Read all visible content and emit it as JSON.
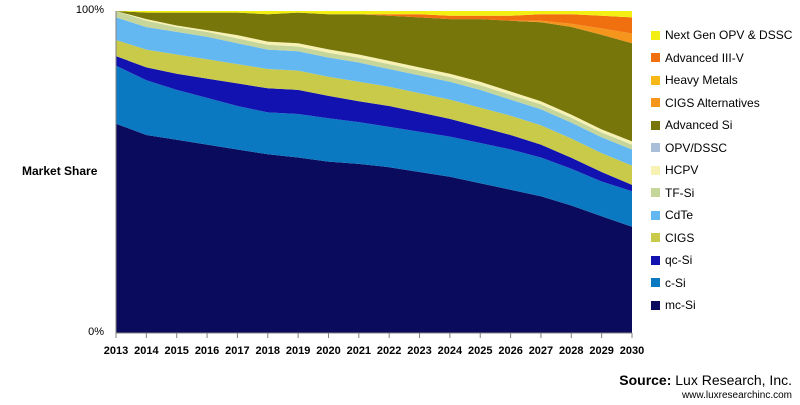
{
  "chart_data": {
    "type": "area",
    "stacked": "percent",
    "ylabel": "Market Share",
    "yticks": [
      "100%",
      "0%"
    ],
    "x": [
      "2013",
      "2014",
      "2015",
      "2016",
      "2017",
      "2018",
      "2019",
      "2020",
      "2021",
      "2022",
      "2023",
      "2024",
      "2025",
      "2026",
      "2027",
      "2028",
      "2029",
      "2030"
    ],
    "series": [
      {
        "name": "mc-Si",
        "color": "#0b0b5e",
        "values": [
          65,
          61.5,
          60,
          58.5,
          57,
          55.5,
          54.5,
          53.5,
          52.5,
          51.5,
          50,
          48.5,
          46.5,
          44.5,
          42.5,
          40,
          37,
          33
        ]
      },
      {
        "name": "c-Si",
        "color": "#0b79c2",
        "values": [
          18,
          17,
          15.5,
          14.5,
          13.5,
          13,
          13.5,
          13.5,
          13,
          12.5,
          12.5,
          12.5,
          12.5,
          12.5,
          12,
          11.5,
          11,
          11
        ]
      },
      {
        "name": "qc-Si",
        "color": "#1212b0",
        "values": [
          3,
          4,
          5,
          6,
          7,
          7.5,
          7.5,
          7,
          6.5,
          6.5,
          6,
          5.5,
          5,
          4.5,
          4,
          3.5,
          3,
          2
        ]
      },
      {
        "name": "CIGS",
        "color": "#c9c94a",
        "values": [
          5,
          5.5,
          6,
          6,
          6,
          6,
          6,
          6,
          6,
          6,
          6,
          6,
          6,
          6,
          6,
          6,
          6,
          6
        ]
      },
      {
        "name": "CdTe",
        "color": "#63b8f2",
        "values": [
          7,
          7,
          7,
          7,
          6.5,
          6,
          6,
          6,
          6,
          5.5,
          5.5,
          5.5,
          5.5,
          5,
          5,
          5,
          5,
          5
        ]
      },
      {
        "name": "TF-Si",
        "color": "#c6d69a",
        "values": [
          2,
          2,
          1.5,
          1.5,
          1.5,
          1.5,
          1.5,
          1.5,
          1.5,
          1.5,
          1.5,
          1.5,
          1.5,
          1.5,
          1.5,
          1.5,
          1.5,
          1.5
        ]
      },
      {
        "name": "HCPV",
        "color": "#f7f2b4",
        "values": [
          0,
          0.5,
          0.5,
          0.5,
          1,
          1,
          1,
          1,
          1,
          1,
          1,
          1,
          1,
          1,
          1,
          1,
          1,
          1
        ]
      },
      {
        "name": "OPV/DSSC",
        "color": "#a9bfd9",
        "values": [
          0,
          0,
          0,
          0,
          0,
          0,
          0,
          0,
          0,
          0,
          0,
          0,
          0,
          0,
          0,
          0,
          0,
          0
        ]
      },
      {
        "name": "Advanced Si",
        "color": "#76760b",
        "values": [
          0,
          2,
          4,
          5.5,
          7,
          8.5,
          9.5,
          11,
          12.5,
          14,
          15.5,
          17,
          19.5,
          22,
          24.5,
          27.5,
          30,
          30.5
        ]
      },
      {
        "name": "CIGS Alternatives",
        "color": "#f5951c",
        "values": [
          0,
          0,
          0,
          0,
          0,
          0,
          0,
          0,
          0,
          0,
          0,
          0,
          0,
          0,
          0.5,
          1,
          2,
          3
        ]
      },
      {
        "name": "Heavy Metals",
        "color": "#f7b818",
        "values": [
          0,
          0,
          0,
          0,
          0,
          0,
          0,
          0,
          0,
          0,
          0,
          0,
          0,
          0,
          0,
          0,
          0,
          0
        ]
      },
      {
        "name": "Advanced III-V",
        "color": "#f07010",
        "values": [
          0,
          0,
          0,
          0,
          0,
          0,
          0,
          0,
          0,
          0.5,
          1,
          1,
          1,
          1.5,
          2,
          3,
          4,
          5
        ]
      },
      {
        "name": "Next Gen OPV & DSSC",
        "color": "#f4ef12",
        "values": [
          0,
          0.5,
          0.5,
          0.5,
          0.5,
          1,
          0.5,
          1,
          1,
          1,
          1,
          1.5,
          1.5,
          1.5,
          1,
          1,
          1.5,
          2
        ]
      }
    ],
    "legend_position": "right",
    "legend_order_top_to_bottom": [
      "Next Gen OPV & DSSC",
      "Advanced III-V",
      "Heavy Metals",
      "CIGS Alternatives",
      "Advanced Si",
      "OPV/DSSC",
      "HCPV",
      "TF-Si",
      "CdTe",
      "CIGS",
      "qc-Si",
      "c-Si",
      "mc-Si"
    ],
    "grid": false
  },
  "source": {
    "label": "Source:",
    "name": "Lux Research, Inc.",
    "url": "www.luxresearchinc.com"
  }
}
